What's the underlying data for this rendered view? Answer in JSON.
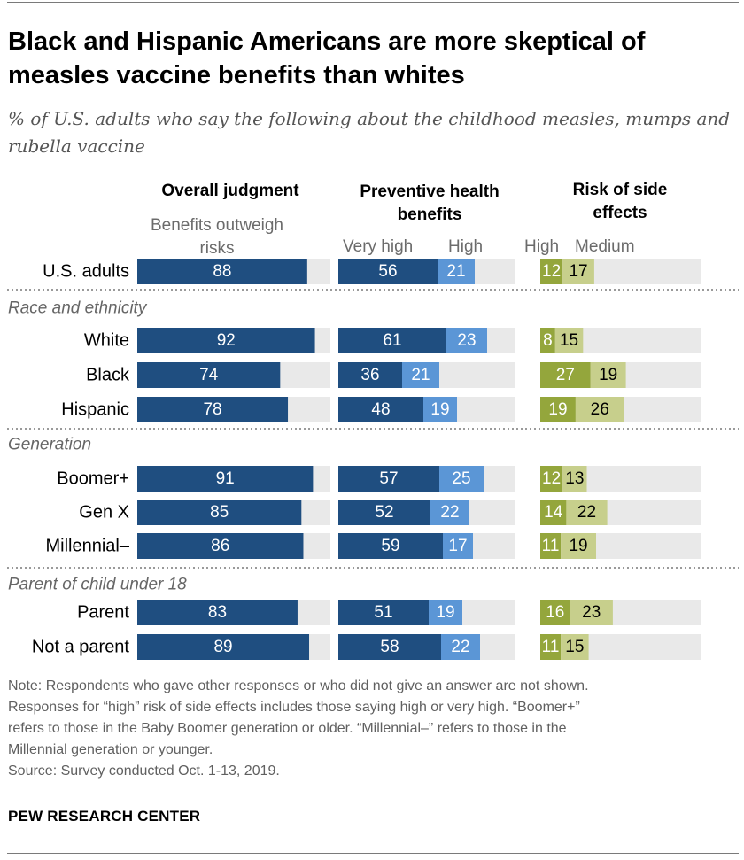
{
  "title": "Black and Hispanic Americans are more skeptical of measles vaccine benefits than whites",
  "subtitle": "% of U.S. adults who say the following about the childhood measles, mumps and rubella vaccine",
  "headers": {
    "overall": "Overall judgment",
    "overall_sub": "Benefits outweigh risks",
    "preventive": "Preventive health benefits",
    "preventive_sub_1": "Very high",
    "preventive_sub_2": "High",
    "risk": "Risk of side effects",
    "risk_sub_1": "High",
    "risk_sub_2": "Medium"
  },
  "colors": {
    "dark_blue": "#1f4e80",
    "light_blue": "#5b96d6",
    "olive_dark": "#94a63c",
    "olive_light": "#c7cf8c",
    "track": "#e9e9e9",
    "divider": "#9a9a9a"
  },
  "chart_data": {
    "type": "bar",
    "groups": [
      {
        "name": "",
        "rows": [
          {
            "label": "U.S. adults",
            "benefits_outweigh": 88,
            "very_high": 56,
            "high": 21,
            "risk_high": 12,
            "risk_medium": 17
          }
        ]
      },
      {
        "name": "Race and ethnicity",
        "rows": [
          {
            "label": "White",
            "benefits_outweigh": 92,
            "very_high": 61,
            "high": 23,
            "risk_high": 8,
            "risk_medium": 15
          },
          {
            "label": "Black",
            "benefits_outweigh": 74,
            "very_high": 36,
            "high": 21,
            "risk_high": 27,
            "risk_medium": 19
          },
          {
            "label": "Hispanic",
            "benefits_outweigh": 78,
            "very_high": 48,
            "high": 19,
            "risk_high": 19,
            "risk_medium": 26
          }
        ]
      },
      {
        "name": "Generation",
        "rows": [
          {
            "label": "Boomer+",
            "benefits_outweigh": 91,
            "very_high": 57,
            "high": 25,
            "risk_high": 12,
            "risk_medium": 13
          },
          {
            "label": "Gen X",
            "benefits_outweigh": 85,
            "very_high": 52,
            "high": 22,
            "risk_high": 14,
            "risk_medium": 22
          },
          {
            "label": "Millennial–",
            "benefits_outweigh": 86,
            "very_high": 59,
            "high": 17,
            "risk_high": 11,
            "risk_medium": 19
          }
        ]
      },
      {
        "name": "Parent of child under 18",
        "rows": [
          {
            "label": "Parent",
            "benefits_outweigh": 83,
            "very_high": 51,
            "high": 19,
            "risk_high": 16,
            "risk_medium": 23
          },
          {
            "label": "Not a parent",
            "benefits_outweigh": 89,
            "very_high": 58,
            "high": 22,
            "risk_high": 11,
            "risk_medium": 15
          }
        ]
      }
    ]
  },
  "notes": [
    "Note: Respondents who gave other responses or who did not give an answer are not shown.",
    "Responses for “high” risk of side effects includes those saying high or very high. “Boomer+”",
    "refers to those in the Baby Boomer generation or older. “Millennial–” refers to those in the",
    "Millennial generation or younger.",
    "Source: Survey conducted Oct. 1-13, 2019."
  ],
  "brand": "PEW RESEARCH CENTER"
}
